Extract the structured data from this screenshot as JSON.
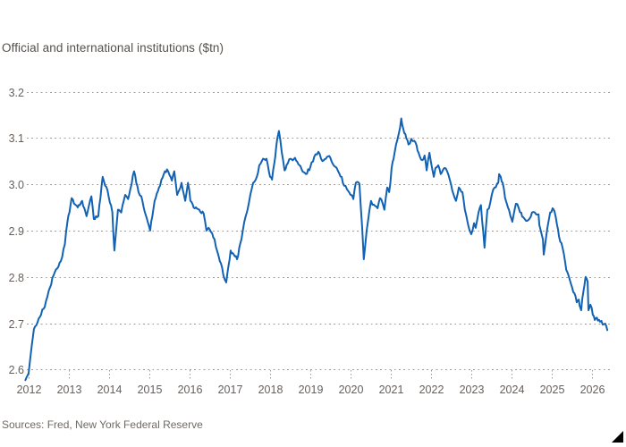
{
  "chart": {
    "title": "Official and international institutions ($tn)",
    "source": "Sources: Fred, New York Federal Reserve"
  },
  "colors": {
    "background": "#ffffff",
    "line": "#1262b3",
    "grid": "#a19a93",
    "axis_text": "#66605c",
    "title_text": "#55504b",
    "source_text": "#6f6a64",
    "corner_triangle": "#000000"
  },
  "chart_data": {
    "type": "line",
    "title": "Official and international institutions ($tn)",
    "unit": "$tn",
    "source": "Sources: Fred, New York Federal Reserve",
    "legend": "none",
    "grid": "horizontal-dotted",
    "x_ticks": [
      2012,
      2013,
      2014,
      2015,
      2016,
      2017,
      2018,
      2019,
      2020,
      2021,
      2022,
      2023,
      2024,
      2025,
      2026
    ],
    "y_ticks": [
      2.6,
      2.7,
      2.8,
      2.9,
      3.0,
      3.1,
      3.2
    ],
    "xlim": [
      2011.9,
      2026.45
    ],
    "ylim": [
      2.55,
      3.22
    ],
    "noise_amplitude": 0.0045,
    "series": [
      {
        "name": "Official and international institutions ($tn)",
        "points": [
          [
            2011.92,
            2.577
          ],
          [
            2012.0,
            2.592
          ],
          [
            2012.13,
            2.687
          ],
          [
            2012.25,
            2.71
          ],
          [
            2012.4,
            2.735
          ],
          [
            2012.5,
            2.77
          ],
          [
            2012.62,
            2.803
          ],
          [
            2012.8,
            2.834
          ],
          [
            2012.9,
            2.87
          ],
          [
            2012.96,
            2.916
          ],
          [
            2013.07,
            2.97
          ],
          [
            2013.22,
            2.95
          ],
          [
            2013.33,
            2.964
          ],
          [
            2013.44,
            2.931
          ],
          [
            2013.56,
            2.974
          ],
          [
            2013.62,
            2.925
          ],
          [
            2013.73,
            2.931
          ],
          [
            2013.84,
            3.016
          ],
          [
            2013.96,
            2.987
          ],
          [
            2014.08,
            2.94
          ],
          [
            2014.13,
            2.857
          ],
          [
            2014.22,
            2.945
          ],
          [
            2014.3,
            2.939
          ],
          [
            2014.4,
            2.977
          ],
          [
            2014.47,
            2.968
          ],
          [
            2014.62,
            3.028
          ],
          [
            2014.73,
            2.983
          ],
          [
            2014.8,
            2.974
          ],
          [
            2014.96,
            2.919
          ],
          [
            2015.02,
            2.9
          ],
          [
            2015.13,
            2.964
          ],
          [
            2015.24,
            2.993
          ],
          [
            2015.36,
            3.022
          ],
          [
            2015.44,
            3.032
          ],
          [
            2015.56,
            3.008
          ],
          [
            2015.62,
            3.028
          ],
          [
            2015.69,
            2.977
          ],
          [
            2015.8,
            3.003
          ],
          [
            2015.89,
            2.964
          ],
          [
            2015.96,
            3.003
          ],
          [
            2016.02,
            2.964
          ],
          [
            2016.13,
            2.948
          ],
          [
            2016.24,
            2.945
          ],
          [
            2016.35,
            2.937
          ],
          [
            2016.42,
            2.9
          ],
          [
            2016.47,
            2.906
          ],
          [
            2016.62,
            2.881
          ],
          [
            2016.69,
            2.854
          ],
          [
            2016.78,
            2.829
          ],
          [
            2016.84,
            2.803
          ],
          [
            2016.91,
            2.788
          ],
          [
            2017.02,
            2.857
          ],
          [
            2017.1,
            2.848
          ],
          [
            2017.18,
            2.838
          ],
          [
            2017.29,
            2.881
          ],
          [
            2017.36,
            2.919
          ],
          [
            2017.44,
            2.945
          ],
          [
            2017.51,
            2.977
          ],
          [
            2017.58,
            3.003
          ],
          [
            2017.67,
            3.016
          ],
          [
            2017.73,
            3.041
          ],
          [
            2017.8,
            3.051
          ],
          [
            2017.91,
            3.055
          ],
          [
            2018.0,
            3.016
          ],
          [
            2018.05,
            3.01
          ],
          [
            2018.18,
            3.099
          ],
          [
            2018.22,
            3.115
          ],
          [
            2018.29,
            3.07
          ],
          [
            2018.36,
            3.03
          ],
          [
            2018.44,
            3.045
          ],
          [
            2018.51,
            3.055
          ],
          [
            2018.62,
            3.057
          ],
          [
            2018.73,
            3.041
          ],
          [
            2018.89,
            3.022
          ],
          [
            2019.0,
            3.037
          ],
          [
            2019.1,
            3.06
          ],
          [
            2019.2,
            3.07
          ],
          [
            2019.3,
            3.05
          ],
          [
            2019.47,
            3.061
          ],
          [
            2019.58,
            3.041
          ],
          [
            2019.69,
            3.028
          ],
          [
            2019.78,
            3.016
          ],
          [
            2019.84,
            2.997
          ],
          [
            2019.91,
            2.989
          ],
          [
            2020.0,
            2.977
          ],
          [
            2020.07,
            2.968
          ],
          [
            2020.13,
            3.003
          ],
          [
            2020.22,
            3.001
          ],
          [
            2020.29,
            2.906
          ],
          [
            2020.33,
            2.838
          ],
          [
            2020.4,
            2.9
          ],
          [
            2020.47,
            2.945
          ],
          [
            2020.51,
            2.964
          ],
          [
            2020.58,
            2.956
          ],
          [
            2020.67,
            2.948
          ],
          [
            2020.73,
            2.97
          ],
          [
            2020.8,
            2.958
          ],
          [
            2020.84,
            2.945
          ],
          [
            2020.91,
            2.993
          ],
          [
            2020.96,
            2.983
          ],
          [
            2021.02,
            3.035
          ],
          [
            2021.07,
            3.055
          ],
          [
            2021.13,
            3.086
          ],
          [
            2021.2,
            3.11
          ],
          [
            2021.26,
            3.142
          ],
          [
            2021.31,
            3.12
          ],
          [
            2021.36,
            3.109
          ],
          [
            2021.44,
            3.086
          ],
          [
            2021.51,
            3.098
          ],
          [
            2021.58,
            3.094
          ],
          [
            2021.64,
            3.084
          ],
          [
            2021.69,
            3.068
          ],
          [
            2021.78,
            3.052
          ],
          [
            2021.84,
            3.062
          ],
          [
            2021.89,
            3.03
          ],
          [
            2021.96,
            3.068
          ],
          [
            2022.0,
            3.047
          ],
          [
            2022.07,
            3.016
          ],
          [
            2022.11,
            3.035
          ],
          [
            2022.18,
            3.041
          ],
          [
            2022.24,
            3.022
          ],
          [
            2022.33,
            3.035
          ],
          [
            2022.4,
            3.028
          ],
          [
            2022.47,
            3.008
          ],
          [
            2022.62,
            2.964
          ],
          [
            2022.69,
            2.993
          ],
          [
            2022.78,
            2.983
          ],
          [
            2022.84,
            2.945
          ],
          [
            2022.96,
            2.9
          ],
          [
            2023.0,
            2.892
          ],
          [
            2023.07,
            2.916
          ],
          [
            2023.11,
            2.906
          ],
          [
            2023.18,
            2.939
          ],
          [
            2023.24,
            2.955
          ],
          [
            2023.33,
            2.863
          ],
          [
            2023.4,
            2.945
          ],
          [
            2023.44,
            2.948
          ],
          [
            2023.51,
            2.977
          ],
          [
            2023.58,
            2.993
          ],
          [
            2023.67,
            3.003
          ],
          [
            2023.69,
            3.022
          ],
          [
            2023.73,
            3.016
          ],
          [
            2023.78,
            3.003
          ],
          [
            2023.84,
            2.97
          ],
          [
            2023.91,
            2.95
          ],
          [
            2024.0,
            2.925
          ],
          [
            2024.02,
            2.919
          ],
          [
            2024.11,
            2.958
          ],
          [
            2024.18,
            2.948
          ],
          [
            2024.24,
            2.939
          ],
          [
            2024.29,
            2.929
          ],
          [
            2024.36,
            2.921
          ],
          [
            2024.44,
            2.925
          ],
          [
            2024.51,
            2.939
          ],
          [
            2024.58,
            2.939
          ],
          [
            2024.67,
            2.935
          ],
          [
            2024.69,
            2.912
          ],
          [
            2024.78,
            2.881
          ],
          [
            2024.8,
            2.848
          ],
          [
            2024.89,
            2.906
          ],
          [
            2024.96,
            2.939
          ],
          [
            2025.02,
            2.948
          ],
          [
            2025.07,
            2.941
          ],
          [
            2025.13,
            2.912
          ],
          [
            2025.18,
            2.887
          ],
          [
            2025.24,
            2.873
          ],
          [
            2025.33,
            2.834
          ],
          [
            2025.36,
            2.815
          ],
          [
            2025.44,
            2.796
          ],
          [
            2025.51,
            2.776
          ],
          [
            2025.56,
            2.765
          ],
          [
            2025.62,
            2.745
          ],
          [
            2025.67,
            2.751
          ],
          [
            2025.69,
            2.738
          ],
          [
            2025.73,
            2.728
          ],
          [
            2025.78,
            2.765
          ],
          [
            2025.84,
            2.8
          ],
          [
            2025.89,
            2.79
          ],
          [
            2025.91,
            2.728
          ],
          [
            2025.96,
            2.74
          ],
          [
            2026.02,
            2.718
          ],
          [
            2026.07,
            2.707
          ],
          [
            2026.12,
            2.712
          ],
          [
            2026.2,
            2.703
          ],
          [
            2026.33,
            2.699
          ],
          [
            2026.38,
            2.685
          ]
        ]
      }
    ]
  }
}
